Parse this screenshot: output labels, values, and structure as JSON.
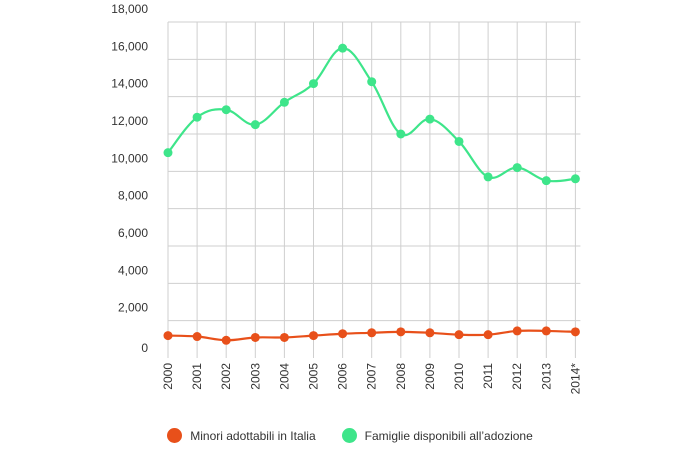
{
  "chart_data": {
    "type": "line",
    "title": "",
    "xlabel": "",
    "ylabel": "",
    "categories": [
      "2000",
      "2001",
      "2002",
      "2003",
      "2004",
      "2005",
      "2006",
      "2007",
      "2008",
      "2009",
      "2010",
      "2011",
      "2012",
      "2013",
      "2014*"
    ],
    "ylim": [
      0,
      18000
    ],
    "yticks": [
      {
        "value": 0,
        "label": "0"
      },
      {
        "value": 2000,
        "label": "2,000"
      },
      {
        "value": 4000,
        "label": "4,000"
      },
      {
        "value": 6000,
        "label": "6,000"
      },
      {
        "value": 8000,
        "label": "8,000"
      },
      {
        "value": 10000,
        "label": "10,000"
      },
      {
        "value": 12000,
        "label": "12,000"
      },
      {
        "value": 14000,
        "label": "14,000"
      },
      {
        "value": 16000,
        "label": "16,000"
      },
      {
        "value": 18000,
        "label": "18,000"
      }
    ],
    "grid": true,
    "legend_position": "bottom",
    "series": [
      {
        "name": "Minori adottabili in Italia",
        "color": "#e8501a",
        "values": [
          1200,
          1150,
          950,
          1100,
          1100,
          1200,
          1300,
          1350,
          1400,
          1350,
          1250,
          1250,
          1450,
          1450,
          1400
        ]
      },
      {
        "name": "Famiglie disponibili all’adozione",
        "color": "#3ee58a",
        "values": [
          11000,
          12900,
          13300,
          12500,
          13700,
          14700,
          16600,
          14800,
          12000,
          12800,
          11600,
          9700,
          10200,
          9500,
          9600
        ]
      }
    ]
  }
}
